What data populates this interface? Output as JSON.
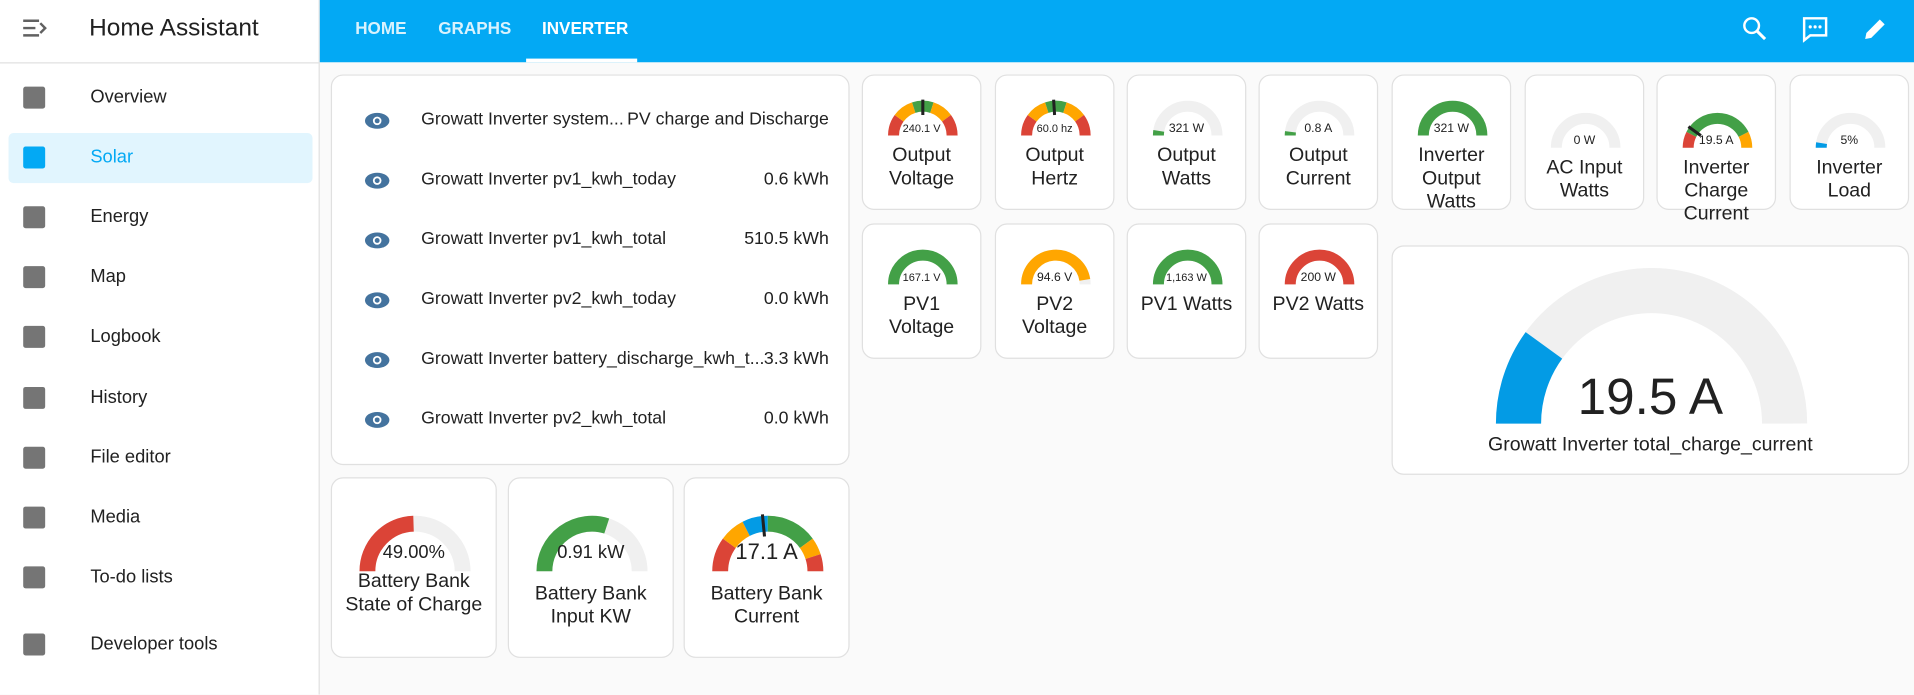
{
  "header": {
    "title": "Home Assistant"
  },
  "sidebar": {
    "items": [
      "Overview",
      "Solar",
      "Energy",
      "Map",
      "Logbook",
      "History",
      "File editor",
      "Media",
      "To-do lists",
      "Developer tools"
    ]
  },
  "tabs": [
    "HOME",
    "GRAPHS",
    "INVERTER"
  ],
  "entities": [
    {
      "name": "Growatt Inverter system...",
      "state": "PV charge and Discharge"
    },
    {
      "name": "Growatt Inverter pv1_kwh_today",
      "state": "0.6 kWh"
    },
    {
      "name": "Growatt Inverter pv1_kwh_total",
      "state": "510.5 kWh"
    },
    {
      "name": "Growatt Inverter pv2_kwh_today",
      "state": "0.0 kWh"
    },
    {
      "name": "Growatt Inverter battery_discharge_kwh_t...",
      "state": "3.3 kWh"
    },
    {
      "name": "Growatt Inverter pv2_kwh_total",
      "state": "0.0 kWh"
    }
  ],
  "gauges": [
    {
      "value": "240.1 V",
      "name": "Output Voltage"
    },
    {
      "value": "60.0 hz",
      "name": "Output Hertz"
    },
    {
      "value": "321 W",
      "name": "Output Watts"
    },
    {
      "value": "0.8 A",
      "name": "Output Current"
    },
    {
      "value": "321 W",
      "name": "Inverter Output Watts"
    },
    {
      "value": "0 W",
      "name": "AC Input Watts"
    },
    {
      "value": "19.5 A",
      "name": "Inverter Charge Current"
    },
    {
      "value": "5%",
      "name": "Inverter Load"
    },
    {
      "value": "167.1 V",
      "name": "PV1 Voltage"
    },
    {
      "value": "94.6 V",
      "name": "PV2 Voltage"
    },
    {
      "value": "1,163 W",
      "name": "PV1 Watts"
    },
    {
      "value": "200 W",
      "name": "PV2 Watts"
    }
  ],
  "battery": [
    {
      "value": "49.00%",
      "name": "Battery Bank State of Charge"
    },
    {
      "value": "0.91 kW",
      "name": "Battery Bank Input KW"
    },
    {
      "value": "17.1 A",
      "name": "Battery Bank Current"
    }
  ],
  "big_gauge": {
    "value": "19.5 A",
    "name": "Growatt Inverter total_charge_current"
  }
}
